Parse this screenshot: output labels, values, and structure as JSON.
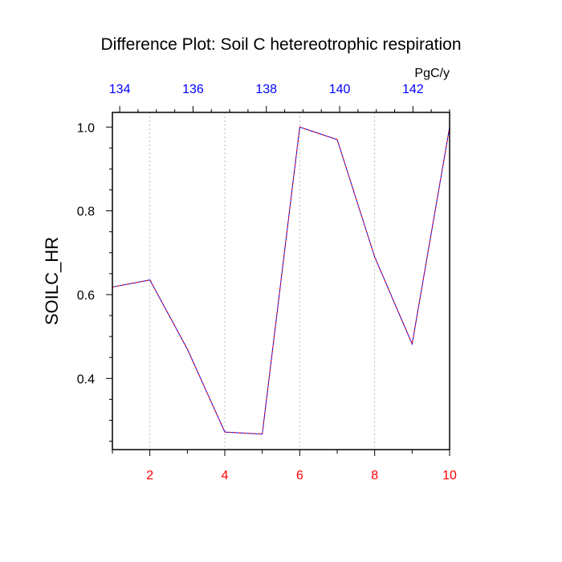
{
  "chart_data": {
    "type": "line",
    "title": "Difference Plot: Soil C hetereotrophic respiration",
    "ylabel": "SOILC_HR",
    "top_axis_unit": "PgC/y",
    "xlim": [
      1,
      10
    ],
    "ylim": [
      0.23,
      1.035
    ],
    "top_xlim": [
      133.8,
      143.0
    ],
    "x_ticks": [
      2,
      4,
      6,
      8,
      10
    ],
    "x_minor_ticks": [
      1,
      3,
      5,
      7,
      9
    ],
    "y_ticks": [
      0.4,
      0.6,
      0.8,
      1.0
    ],
    "y_tick_labels": [
      "0.4",
      "0.6",
      "0.8",
      "1.0"
    ],
    "top_ticks": [
      134,
      136,
      138,
      140,
      142
    ],
    "grid": "vertical-dotted",
    "series": [
      {
        "color": "#0000ff",
        "x": [
          1,
          2,
          3,
          4,
          5,
          6,
          7,
          8,
          9,
          10
        ],
        "values": [
          0.618,
          0.635,
          0.47,
          0.272,
          0.267,
          1.0,
          0.97,
          0.69,
          0.482,
          1.0
        ]
      },
      {
        "color": "#ff0000",
        "x": [
          1,
          2,
          3,
          4,
          5,
          6,
          7,
          8,
          9,
          10
        ],
        "values": [
          0.618,
          0.635,
          0.47,
          0.272,
          0.267,
          1.0,
          0.97,
          0.69,
          0.482,
          1.0
        ]
      }
    ],
    "colors": {
      "bottom_axis_labels": "#ff0000",
      "top_axis_labels": "#0000ff",
      "axis": "#000000"
    }
  }
}
